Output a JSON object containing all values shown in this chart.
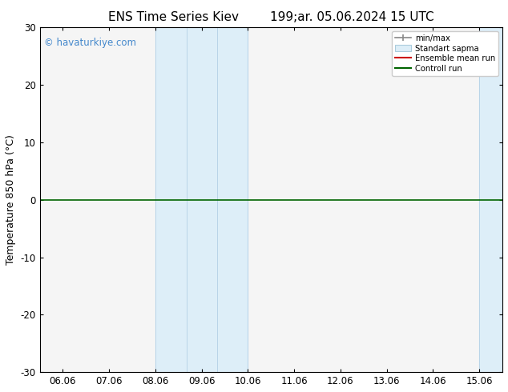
{
  "title_left": "ENS Time Series Kiev",
  "title_right": "199;ar. 05.06.2024 15 UTC",
  "ylabel": "Temperature 850 hPa (°C)",
  "ylim": [
    -30,
    30
  ],
  "yticks": [
    -30,
    -20,
    -10,
    0,
    10,
    20,
    30
  ],
  "xtick_labels": [
    "06.06",
    "07.06",
    "08.06",
    "09.06",
    "10.06",
    "11.06",
    "12.06",
    "13.06",
    "14.06",
    "15.06"
  ],
  "xtick_positions": [
    0,
    1,
    2,
    3,
    4,
    5,
    6,
    7,
    8,
    9
  ],
  "shaded_regions": [
    {
      "xmin": 2.0,
      "xmax": 2.67,
      "color": "#ddeeff"
    },
    {
      "xmin": 2.67,
      "xmax": 3.33,
      "color": "#ddeeff"
    },
    {
      "xmin": 3.33,
      "xmax": 4.0,
      "color": "#ddeeff"
    },
    {
      "xmin": 9.0,
      "xmax": 9.5,
      "color": "#ddeeff"
    }
  ],
  "shaded_bands": [
    {
      "xmin": 2.0,
      "xmax": 4.0
    },
    {
      "xmin": 9.0,
      "xmax": 9.67
    }
  ],
  "hline_y": 0,
  "hline_color": "#006400",
  "hline_lw": 1.2,
  "watermark": "© havaturkiye.com",
  "watermark_color": "#4488cc",
  "legend_labels": [
    "min/max",
    "Standart sapma",
    "Ensemble mean run",
    "Controll run"
  ],
  "background_color": "#ffffff",
  "plot_bg": "#f5f5f5",
  "title_fontsize": 11,
  "axis_fontsize": 9,
  "tick_fontsize": 8.5,
  "xlim_left": -0.5,
  "xlim_right": 9.5
}
